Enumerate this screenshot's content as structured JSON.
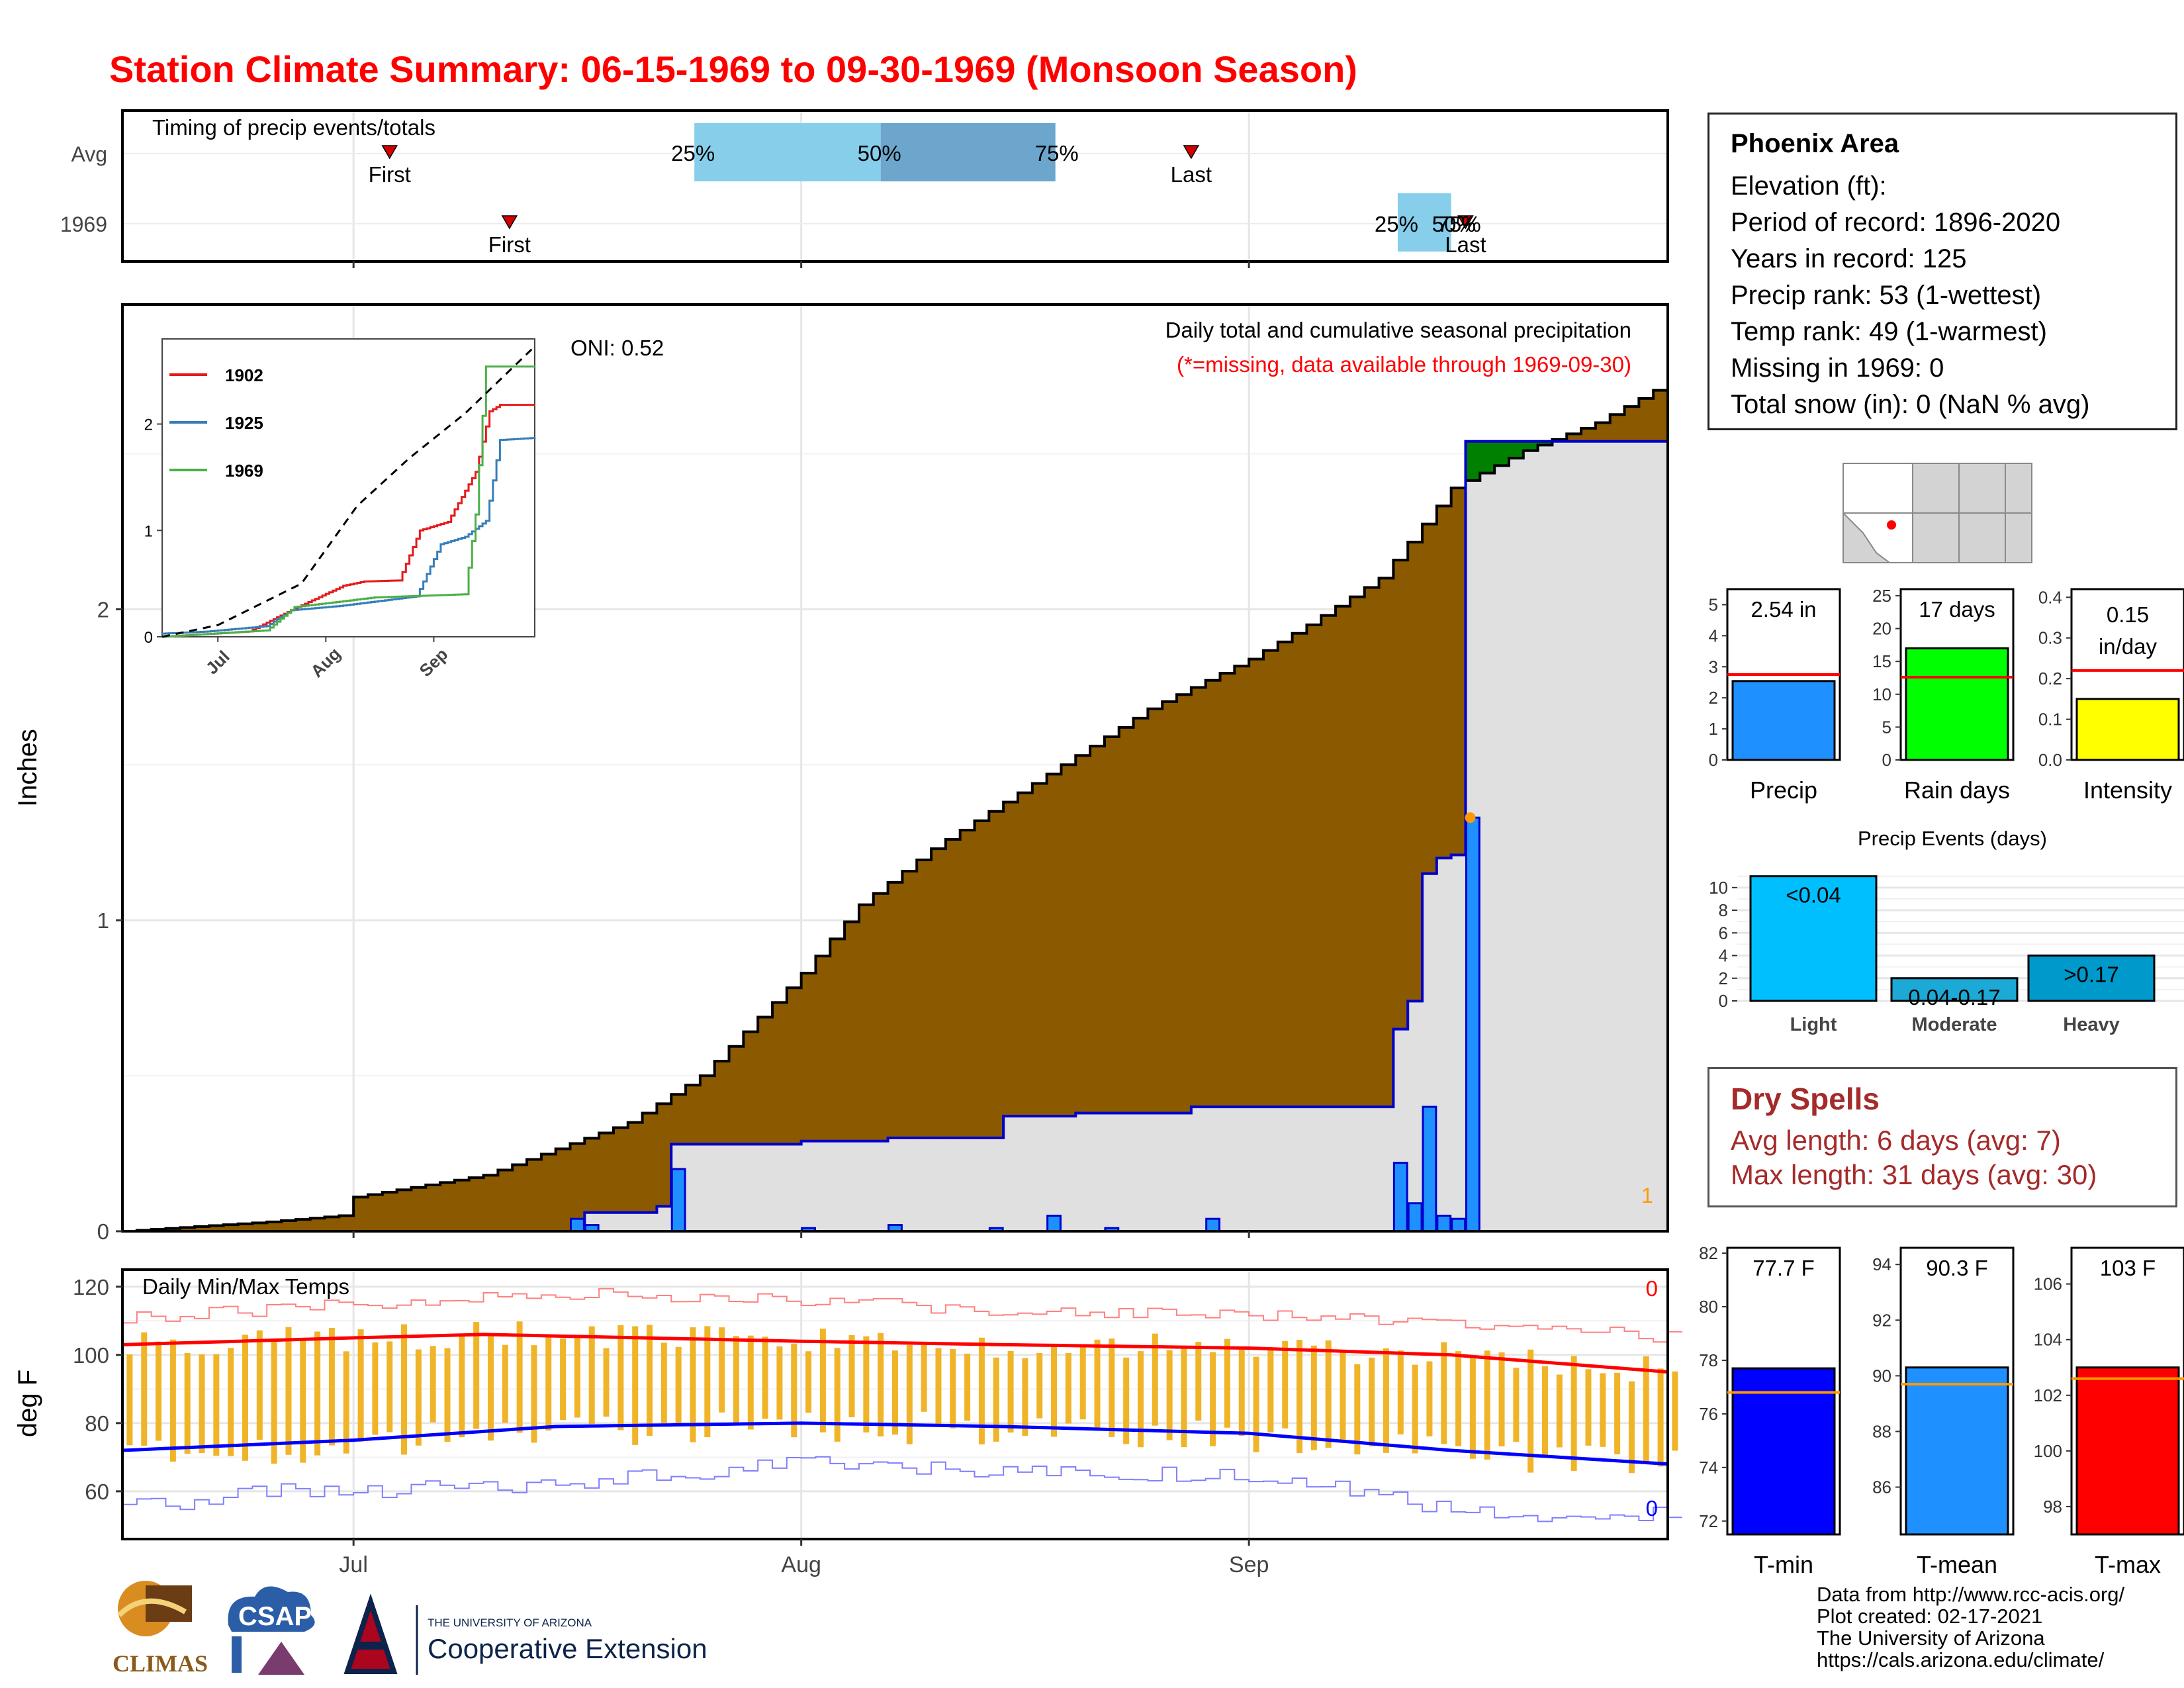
{
  "title": "Station Climate Summary: 06-15-1969 to 09-30-1969 (Monsoon Season)",
  "timing_panel": {
    "title": "Timing of precip events/totals",
    "rows": [
      {
        "label": "Avg",
        "first": "First",
        "last": "Last",
        "p25": "25%",
        "p50": "50%",
        "p75": "75%"
      },
      {
        "label": "1969",
        "first": "First",
        "last": "Last",
        "p25": "25%",
        "p50": "50%",
        "p75": "75%"
      }
    ]
  },
  "precip_panel": {
    "ylabel": "Inches",
    "yticks": [
      "0",
      "1",
      "2"
    ],
    "title": "Daily total and cumulative seasonal precipitation",
    "subtitle": "(*=missing, data available through 1969-09-30)",
    "oni": "ONI: 0.52",
    "count_label": "1"
  },
  "inset": {
    "legend": [
      "1902",
      "1925",
      "1969"
    ],
    "legend_colors": [
      "#e41a1c",
      "#377eb8",
      "#4daf4a"
    ],
    "yticks": [
      "0",
      "1",
      "2"
    ],
    "xticks": [
      "Jul",
      "Aug",
      "Sep"
    ]
  },
  "temp_panel": {
    "ylabel": "deg F",
    "title": "Daily Min/Max Temps",
    "yticks": [
      "60",
      "80",
      "100",
      "120"
    ],
    "max_count": "0",
    "min_count": "0"
  },
  "xaxis": {
    "ticks": [
      "Jul",
      "Aug",
      "Sep"
    ]
  },
  "station": {
    "name": "Phoenix Area",
    "lines": [
      "Elevation (ft):",
      "Period of record: 1896-2020",
      "Years in record: 125",
      "Precip rank: 53 (1-wettest)",
      "Temp rank: 49 (1-warmest)",
      "Missing in 1969: 0",
      "Total snow (in): 0 (NaN % avg)"
    ]
  },
  "summary_bars": [
    {
      "label": "Precip",
      "value_label": "2.54 in",
      "value": 2.54,
      "avg": 2.75,
      "ymax": 5.5,
      "ticks": [
        "0",
        "1",
        "2",
        "3",
        "4",
        "5"
      ],
      "color": "#1e90ff"
    },
    {
      "label": "Rain days",
      "value_label": "17 days",
      "value": 17,
      "avg": 12.6,
      "ymax": 26,
      "ticks": [
        "0",
        "5",
        "10",
        "15",
        "20",
        "25"
      ],
      "color": "#00ff00"
    },
    {
      "label": "Intensity",
      "value_label": "0.15 in/day",
      "value_line1": "0.15",
      "value_line2": "in/day",
      "value": 0.15,
      "avg": 0.22,
      "ymax": 0.42,
      "ticks": [
        "0.0",
        "0.1",
        "0.2",
        "0.3",
        "0.4"
      ],
      "color": "#ffff00"
    }
  ],
  "events": {
    "title": "Precip Events (days)",
    "categories": [
      "Light",
      "Moderate",
      "Heavy"
    ],
    "value_labels": [
      "<0.04",
      "0.04-0.17",
      ">0.17"
    ],
    "values": [
      11,
      2,
      4
    ],
    "colors": [
      "#00bfff",
      "#1ca9d6",
      "#0099cc"
    ],
    "yticks": [
      "0",
      "2",
      "4",
      "6",
      "8",
      "10"
    ]
  },
  "dry_spells": {
    "title": "Dry Spells",
    "avg": "Avg length: 6 days (avg: 7)",
    "max": "Max length: 31 days (avg: 30)"
  },
  "temp_bars": [
    {
      "label": "T-min",
      "value_label": "77.7 F",
      "value": 77.7,
      "avg": 76.8,
      "ymin": 71.5,
      "ymax": 82.2,
      "ticks": [
        "72",
        "74",
        "76",
        "78",
        "80",
        "82"
      ],
      "color": "#0000ff"
    },
    {
      "label": "T-mean",
      "value_label": "90.3 F",
      "value": 90.3,
      "avg": 89.7,
      "ymin": 84.3,
      "ymax": 94.6,
      "ticks": [
        "86",
        "88",
        "90",
        "92",
        "94"
      ],
      "color": "#1e90ff"
    },
    {
      "label": "T-max",
      "value_label": "103 F",
      "value": 103,
      "avg": 102.6,
      "ymin": 97,
      "ymax": 107.3,
      "ticks": [
        "98",
        "100",
        "102",
        "104",
        "106"
      ],
      "color": "#ff0000"
    }
  ],
  "credits": [
    "Data from http://www.rcc-acis.org/",
    "Plot created: 02-17-2021",
    "The University of Arizona",
    "https://cals.arizona.edu/climate/"
  ],
  "logos": {
    "climas": "CLIMAS",
    "csap": "CSAP",
    "ua_small": "THE UNIVERSITY OF ARIZONA",
    "ua_big": "Cooperative Extension"
  },
  "chart_data": [
    {
      "type": "area",
      "title": "Daily total and cumulative seasonal precipitation",
      "ylabel": "Inches",
      "ylim": [
        0,
        2.98
      ],
      "x_range": [
        "1969-06-15",
        "1969-09-30"
      ],
      "series": [
        {
          "name": "Avg",
          "points": [
            [
              "1969-06-15",
              0.0
            ],
            [
              "1969-06-25",
              0.03
            ],
            [
              "1969-06-30",
              0.05
            ],
            [
              "1969-07-01",
              0.11
            ],
            [
              "1969-07-10",
              0.18
            ],
            [
              "1969-07-20",
              0.35
            ],
            [
              "1969-07-25",
              0.5
            ],
            [
              "1969-08-01",
              0.83
            ],
            [
              "1969-08-05",
              1.05
            ],
            [
              "1969-08-10",
              1.23
            ],
            [
              "1969-08-15",
              1.38
            ],
            [
              "1969-08-20",
              1.53
            ],
            [
              "1969-08-25",
              1.68
            ],
            [
              "1969-09-01",
              1.84
            ],
            [
              "1969-09-05",
              1.95
            ],
            [
              "1969-09-10",
              2.1
            ],
            [
              "1969-09-15",
              2.39
            ],
            [
              "1969-09-20",
              2.51
            ],
            [
              "1969-09-25",
              2.6
            ],
            [
              "1969-09-30",
              2.73
            ]
          ]
        },
        {
          "name": "1969",
          "points": [
            [
              "1969-06-15",
              0.0
            ],
            [
              "1969-07-15",
              0.0
            ],
            [
              "1969-07-17",
              0.06
            ],
            [
              "1969-07-22",
              0.08
            ],
            [
              "1969-07-23",
              0.28
            ],
            [
              "1969-08-01",
              0.29
            ],
            [
              "1969-08-07",
              0.3
            ],
            [
              "1969-08-15",
              0.37
            ],
            [
              "1969-08-20",
              0.38
            ],
            [
              "1969-08-28",
              0.4
            ],
            [
              "1969-09-10",
              0.4
            ],
            [
              "1969-09-11",
              0.65
            ],
            [
              "1969-09-12",
              0.74
            ],
            [
              "1969-09-13",
              1.15
            ],
            [
              "1969-09-14",
              1.2
            ],
            [
              "1969-09-15",
              1.21
            ],
            [
              "1969-09-16",
              2.54
            ],
            [
              "1969-09-30",
              2.54
            ]
          ]
        }
      ],
      "daily_bars": [
        [
          "1969-07-16",
          0.04
        ],
        [
          "1969-07-17",
          0.02
        ],
        [
          "1969-07-23",
          0.2
        ],
        [
          "1969-08-01",
          0.01
        ],
        [
          "1969-08-07",
          0.02
        ],
        [
          "1969-08-14",
          0.01
        ],
        [
          "1969-08-18",
          0.05
        ],
        [
          "1969-08-22",
          0.01
        ],
        [
          "1969-08-29",
          0.04
        ],
        [
          "1969-09-11",
          0.22
        ],
        [
          "1969-09-12",
          0.09
        ],
        [
          "1969-09-13",
          0.4
        ],
        [
          "1969-09-14",
          0.05
        ],
        [
          "1969-09-15",
          0.04
        ],
        [
          "1969-09-16",
          1.33
        ]
      ]
    },
    {
      "type": "line",
      "title": "",
      "ylim": [
        0,
        2.8
      ],
      "series": [
        {
          "name": "1902",
          "points": [
            [
              "06-15",
              0
            ],
            [
              "07-10",
              0.05
            ],
            [
              "07-22",
              0.25
            ],
            [
              "08-06",
              0.48
            ],
            [
              "08-12",
              0.52
            ],
            [
              "08-22",
              0.53
            ],
            [
              "08-28",
              1.0
            ],
            [
              "09-05",
              1.08
            ],
            [
              "09-13",
              1.55
            ],
            [
              "09-17",
              2.12
            ],
            [
              "09-20",
              2.18
            ],
            [
              "09-30",
              2.18
            ]
          ]
        },
        {
          "name": "1925",
          "points": [
            [
              "06-15",
              0.03
            ],
            [
              "06-28",
              0.05
            ],
            [
              "07-15",
              0.1
            ],
            [
              "07-22",
              0.25
            ],
            [
              "08-05",
              0.29
            ],
            [
              "08-27",
              0.38
            ],
            [
              "09-03",
              0.87
            ],
            [
              "09-10",
              0.94
            ],
            [
              "09-16",
              1.09
            ],
            [
              "09-20",
              1.85
            ],
            [
              "09-30",
              1.87
            ]
          ]
        },
        {
          "name": "1969",
          "points": [
            [
              "06-15",
              0
            ],
            [
              "07-15",
              0.06
            ],
            [
              "07-23",
              0.28
            ],
            [
              "08-15",
              0.37
            ],
            [
              "09-10",
              0.4
            ],
            [
              "09-13",
              1.15
            ],
            [
              "09-16",
              2.54
            ],
            [
              "09-30",
              2.54
            ]
          ]
        },
        {
          "name": "Avg",
          "points": [
            [
              "06-15",
              0
            ],
            [
              "07-01",
              0.11
            ],
            [
              "07-25",
              0.5
            ],
            [
              "08-10",
              1.23
            ],
            [
              "08-25",
              1.68
            ],
            [
              "09-10",
              2.1
            ],
            [
              "09-30",
              2.73
            ]
          ]
        }
      ]
    },
    {
      "type": "line",
      "title": "Daily Min/Max Temps",
      "ylabel": "deg F",
      "ylim": [
        46,
        125
      ],
      "series": [
        {
          "name": "avg max",
          "points": [
            [
              "06-15",
              103
            ],
            [
              "07-01",
              105
            ],
            [
              "07-10",
              106
            ],
            [
              "08-01",
              104
            ],
            [
              "08-15",
              103
            ],
            [
              "09-01",
              102
            ],
            [
              "09-15",
              100
            ],
            [
              "09-30",
              95
            ]
          ]
        },
        {
          "name": "avg min",
          "points": [
            [
              "06-15",
              72
            ],
            [
              "07-01",
              75
            ],
            [
              "07-15",
              79
            ],
            [
              "08-01",
              80
            ],
            [
              "08-15",
              79
            ],
            [
              "09-01",
              77
            ],
            [
              "09-15",
              72
            ],
            [
              "09-30",
              68
            ]
          ]
        },
        {
          "name": "record max",
          "points": [
            [
              "06-15",
              111
            ],
            [
              "06-25",
              113
            ],
            [
              "07-01",
              115
            ],
            [
              "07-15",
              118
            ],
            [
              "08-01",
              116
            ],
            [
              "08-15",
              113
            ],
            [
              "09-01",
              112
            ],
            [
              "09-15",
              110
            ],
            [
              "09-30",
              105
            ]
          ]
        },
        {
          "name": "record min",
          "points": [
            [
              "06-15",
              55
            ],
            [
              "06-25",
              60
            ],
            [
              "07-10",
              61
            ],
            [
              "08-01",
              68
            ],
            [
              "08-15",
              66
            ],
            [
              "09-01",
              65
            ],
            [
              "09-15",
              55
            ],
            [
              "09-22",
              50
            ],
            [
              "09-30",
              54
            ]
          ]
        }
      ]
    }
  ]
}
